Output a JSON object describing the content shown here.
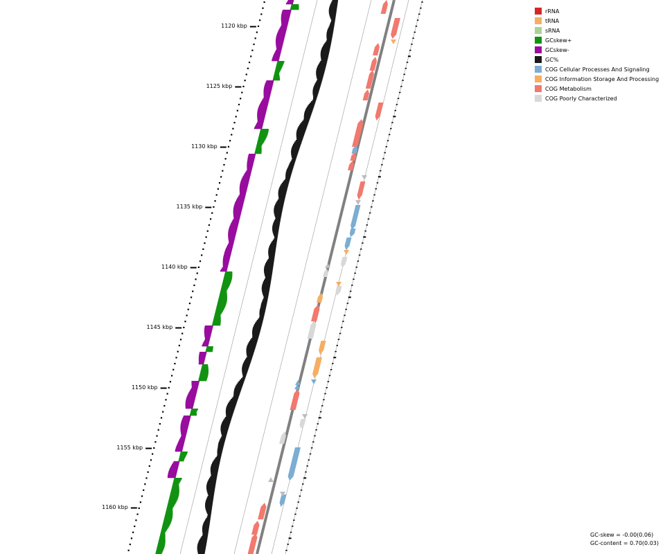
{
  "ruler_labels": [
    "1120 kbp",
    "1125 kbp",
    "1130 kbp",
    "1135 kbp",
    "1140 kbp",
    "1145 kbp",
    "1150 kbp",
    "1155 kbp",
    "1160 kbp"
  ],
  "legend": [
    {
      "label": "rRNA",
      "color": "#d62728"
    },
    {
      "label": "tRNA",
      "color": "#f6ae63"
    },
    {
      "label": "sRNA",
      "color": "#a6d497"
    },
    {
      "label": "GCskew+",
      "color": "#119311"
    },
    {
      "label": "GCskew-",
      "color": "#980c9e"
    },
    {
      "label": "GC%",
      "color": "#1a1a1a"
    },
    {
      "label": "COG Cellular Processes And Signaling",
      "color": "#7cadd2"
    },
    {
      "label": "COG Information Storage And Processing",
      "color": "#f6ae63"
    },
    {
      "label": "COG Metabolism",
      "color": "#f1796e"
    },
    {
      "label": "COG Poorly Characterized",
      "color": "#d8d8d8"
    }
  ],
  "stats": {
    "gc_skew": "GC-skew = -0.00(0.06)",
    "gc_content": "GC-content = 0.70(0.03)"
  },
  "colors": {
    "gc_content": "#1a1a1a",
    "skew_pos": "#119311",
    "skew_neg": "#980c9e",
    "backbone": "#808080",
    "grid": "#999999",
    "marker": "#bdbdbd"
  }
}
